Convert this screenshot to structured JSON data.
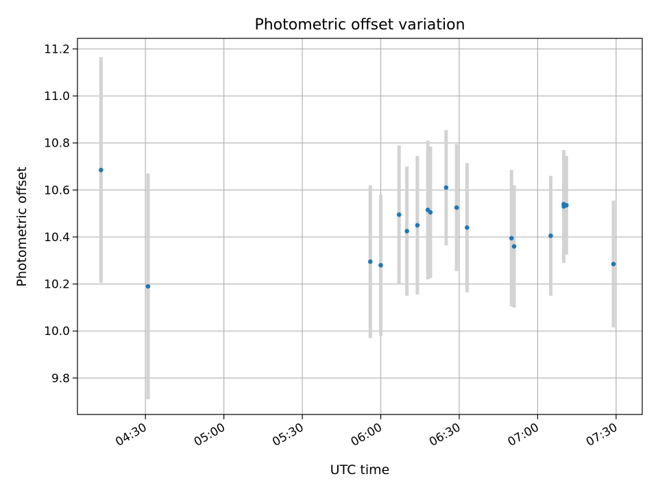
{
  "chart_data": {
    "type": "scatter",
    "title": "Photometric offset variation",
    "xlabel": "UTC time",
    "ylabel": "Photometric offset",
    "xlim": [
      "04:04",
      "07:40"
    ],
    "ylim": [
      9.645,
      11.245
    ],
    "grid": true,
    "x_ticks": [
      "04:30",
      "05:00",
      "05:30",
      "06:00",
      "06:30",
      "07:00",
      "07:30"
    ],
    "y_ticks": [
      "9.8",
      "10.0",
      "10.2",
      "10.4",
      "10.6",
      "10.8",
      "11.0",
      "11.2"
    ],
    "series": [
      {
        "marker_color": "#1f77b4",
        "errorbar_color": "#d3d3d3",
        "points": [
          {
            "x": "04:13",
            "y": 10.685,
            "yerr": 0.48
          },
          {
            "x": "04:31",
            "y": 10.19,
            "yerr": 0.48
          },
          {
            "x": "05:56",
            "y": 10.295,
            "yerr": 0.325
          },
          {
            "x": "06:00",
            "y": 10.28,
            "yerr": 0.3
          },
          {
            "x": "06:07",
            "y": 10.495,
            "yerr": 0.295
          },
          {
            "x": "06:10",
            "y": 10.425,
            "yerr": 0.275
          },
          {
            "x": "06:14",
            "y": 10.45,
            "yerr": 0.295
          },
          {
            "x": "06:18",
            "y": 10.515,
            "yerr": 0.295
          },
          {
            "x": "06:19",
            "y": 10.505,
            "yerr": 0.28
          },
          {
            "x": "06:25",
            "y": 10.61,
            "yerr": 0.245
          },
          {
            "x": "06:29",
            "y": 10.525,
            "yerr": 0.27
          },
          {
            "x": "06:33",
            "y": 10.44,
            "yerr": 0.275
          },
          {
            "x": "06:50",
            "y": 10.395,
            "yerr": 0.29
          },
          {
            "x": "06:51",
            "y": 10.36,
            "yerr": 0.26
          },
          {
            "x": "07:05",
            "y": 10.405,
            "yerr": 0.255
          },
          {
            "x": "07:10",
            "y": 10.54,
            "yerr": 0.23
          },
          {
            "x": "07:10",
            "y": 10.53,
            "yerr": 0.24
          },
          {
            "x": "07:11",
            "y": 10.535,
            "yerr": 0.21
          },
          {
            "x": "07:29",
            "y": 10.285,
            "yerr": 0.27
          }
        ]
      }
    ]
  }
}
